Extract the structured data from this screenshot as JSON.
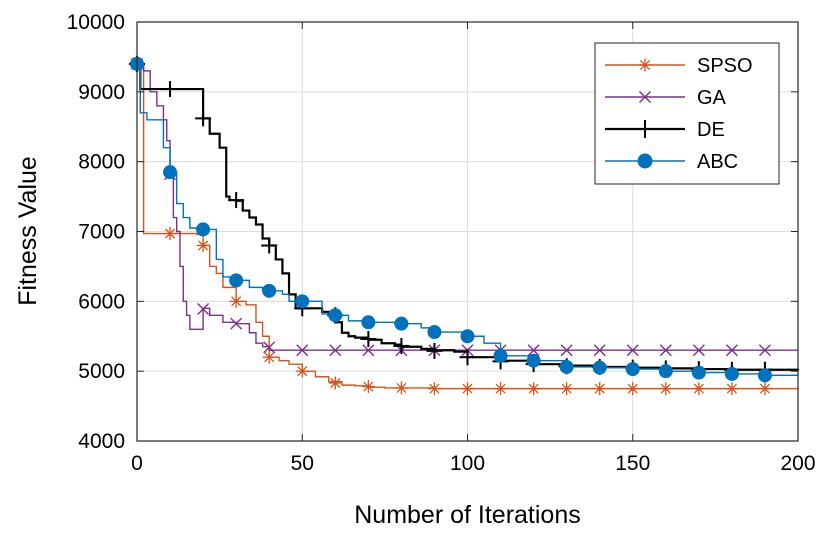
{
  "chart_data": {
    "type": "line",
    "title": "",
    "xlabel": "Number of Iterations",
    "ylabel": "Fitness Value",
    "xlim": [
      0,
      200
    ],
    "ylim": [
      4000,
      10000
    ],
    "xticks": [
      0,
      50,
      100,
      150,
      200
    ],
    "yticks": [
      4000,
      5000,
      6000,
      7000,
      8000,
      9000,
      10000
    ],
    "xtick_labels": [
      "0",
      "50",
      "100",
      "150",
      "200"
    ],
    "ytick_labels": [
      "4000",
      "5000",
      "6000",
      "7000",
      "8000",
      "9000",
      "10000"
    ],
    "grid": true,
    "legend_position": "top-right",
    "series": [
      {
        "name": "SPSO",
        "color": "#D95319",
        "marker": "asterisk",
        "x": [
          0,
          1,
          2,
          12,
          18,
          20,
          22,
          24,
          26,
          30,
          33,
          36,
          38,
          40,
          43,
          46,
          50,
          54,
          58,
          62,
          66,
          70,
          75,
          80,
          90,
          100,
          110,
          120,
          130,
          140,
          150,
          160,
          170,
          180,
          190,
          200
        ],
        "y": [
          9400,
          9400,
          6970,
          6970,
          6960,
          6800,
          6500,
          6400,
          6200,
          6000,
          5950,
          5700,
          5500,
          5200,
          5150,
          5100,
          5000,
          4920,
          4850,
          4800,
          4790,
          4770,
          4760,
          4760,
          4750,
          4750,
          4750,
          4750,
          4750,
          4750,
          4750,
          4750,
          4750,
          4750,
          4750,
          4750
        ],
        "marker_x": [
          0,
          10,
          20,
          30,
          40,
          50,
          60,
          70,
          80,
          90,
          100,
          110,
          120,
          130,
          140,
          150,
          160,
          170,
          180,
          190
        ],
        "marker_y": [
          9400,
          6970,
          6800,
          6000,
          5200,
          5000,
          4830,
          4780,
          4760,
          4750,
          4750,
          4750,
          4750,
          4750,
          4750,
          4750,
          4750,
          4750,
          4750,
          4750
        ]
      },
      {
        "name": "GA",
        "color": "#7E2F8E",
        "marker": "x",
        "x": [
          0,
          2,
          4,
          6,
          8,
          9,
          10,
          11,
          12,
          13,
          14,
          15,
          16,
          18,
          20,
          22,
          26,
          30,
          34,
          36,
          38,
          40,
          45,
          50,
          60,
          80,
          100,
          120,
          140,
          160,
          180,
          200
        ],
        "y": [
          9400,
          9300,
          9000,
          8800,
          8600,
          8300,
          7800,
          7200,
          7000,
          6500,
          6000,
          5800,
          5600,
          5600,
          5900,
          5800,
          5700,
          5680,
          5550,
          5400,
          5350,
          5300,
          5300,
          5300,
          5300,
          5300,
          5300,
          5300,
          5300,
          5300,
          5300,
          5300
        ],
        "marker_x": [
          0,
          10,
          20,
          30,
          40,
          50,
          60,
          70,
          80,
          90,
          100,
          110,
          120,
          130,
          140,
          150,
          160,
          170,
          180,
          190
        ],
        "marker_y": [
          9400,
          7820,
          5890,
          5680,
          5340,
          5300,
          5300,
          5300,
          5300,
          5300,
          5300,
          5300,
          5300,
          5300,
          5300,
          5300,
          5300,
          5300,
          5300,
          5300
        ]
      },
      {
        "name": "DE",
        "color": "#000000",
        "marker": "plus",
        "x": [
          0,
          1,
          10,
          20,
          22,
          25,
          27,
          28,
          30,
          32,
          34,
          36,
          38,
          40,
          42,
          44,
          46,
          48,
          50,
          54,
          56,
          58,
          60,
          62,
          64,
          66,
          70,
          74,
          78,
          80,
          86,
          90,
          96,
          100,
          110,
          120,
          130,
          140,
          150,
          160,
          170,
          180,
          190,
          200
        ],
        "y": [
          9400,
          9040,
          9040,
          8620,
          8400,
          8200,
          7500,
          7450,
          7440,
          7300,
          7200,
          7100,
          6900,
          6800,
          6600,
          6400,
          6100,
          5900,
          5900,
          5900,
          5850,
          5800,
          5700,
          5550,
          5500,
          5480,
          5450,
          5400,
          5380,
          5350,
          5320,
          5300,
          5280,
          5200,
          5150,
          5100,
          5080,
          5060,
          5050,
          5040,
          5030,
          5020,
          5020,
          5010
        ],
        "marker_x": [
          0,
          10,
          20,
          30,
          40,
          50,
          60,
          70,
          80,
          90,
          100,
          110,
          120,
          130,
          140,
          150,
          160,
          170,
          180,
          190
        ],
        "marker_y": [
          9400,
          9040,
          8620,
          7450,
          6800,
          5900,
          5800,
          5460,
          5360,
          5290,
          5200,
          5140,
          5100,
          5070,
          5060,
          5050,
          5040,
          5030,
          5020,
          5020
        ]
      },
      {
        "name": "ABC",
        "color": "#0072BD",
        "marker": "circle",
        "x": [
          0,
          1,
          3,
          6,
          8,
          10,
          12,
          14,
          16,
          18,
          20,
          24,
          26,
          30,
          34,
          38,
          40,
          44,
          46,
          50,
          56,
          60,
          64,
          70,
          78,
          86,
          90,
          100,
          105,
          110,
          120,
          130,
          140,
          150,
          160,
          170,
          180,
          190,
          200
        ],
        "y": [
          9400,
          8700,
          8600,
          8600,
          8200,
          7850,
          7400,
          7200,
          7050,
          7030,
          7030,
          6600,
          6350,
          6300,
          6200,
          6150,
          6150,
          6100,
          6000,
          6000,
          5820,
          5800,
          5720,
          5700,
          5680,
          5620,
          5560,
          5500,
          5400,
          5220,
          5150,
          5060,
          5050,
          5030,
          5000,
          4980,
          4960,
          4940,
          4940
        ],
        "marker_x": [
          0,
          10,
          20,
          30,
          40,
          50,
          60,
          70,
          80,
          90,
          100,
          110,
          120,
          130,
          140,
          150,
          160,
          170,
          180,
          190
        ],
        "marker_y": [
          9400,
          7850,
          7030,
          6300,
          6150,
          6000,
          5800,
          5700,
          5680,
          5560,
          5500,
          5220,
          5150,
          5060,
          5050,
          5030,
          5000,
          4980,
          4960,
          4940
        ]
      }
    ]
  }
}
